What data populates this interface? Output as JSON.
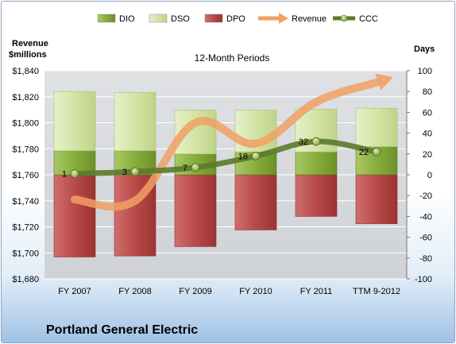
{
  "chart_data": {
    "type": "bar",
    "title": "12-Month Periods",
    "company": "Portland General Electric",
    "left_axis_label_line1": "Revenue",
    "left_axis_label_line2": "$millions",
    "right_axis_label": "Days",
    "categories": [
      "FY 2007",
      "FY 2008",
      "FY 2009",
      "FY 2010",
      "FY 2011",
      "TTM 9-2012"
    ],
    "left_axis": {
      "min": 1680,
      "max": 1840,
      "step": 20,
      "ticks": [
        "$1,680",
        "$1,700",
        "$1,720",
        "$1,740",
        "$1,760",
        "$1,780",
        "$1,800",
        "$1,820",
        "$1,840"
      ]
    },
    "right_axis": {
      "min": -100,
      "max": 100,
      "step": 20,
      "ticks": [
        "-100",
        "-80",
        "-60",
        "-40",
        "-20",
        "0",
        "20",
        "40",
        "60",
        "80",
        "100"
      ]
    },
    "grid": true,
    "legend_position": "top",
    "series": [
      {
        "name": "DIO",
        "axis": "right",
        "kind": "stacked-bar",
        "color": "#8bb040",
        "values": [
          23,
          23,
          20,
          22,
          22,
          27
        ]
      },
      {
        "name": "DSO",
        "axis": "right",
        "kind": "stacked-bar",
        "color": "#d7e7ae",
        "values": [
          57,
          56,
          42,
          40,
          41,
          37
        ]
      },
      {
        "name": "DPO",
        "axis": "right",
        "kind": "negative-bar",
        "color": "#b94e4e",
        "values": [
          -79,
          -78,
          -69,
          -53,
          -40,
          -47
        ]
      },
      {
        "name": "Revenue",
        "axis": "left",
        "kind": "arrow-line",
        "color": "#f1a064",
        "values": [
          1741,
          1740,
          1800,
          1784,
          1816,
          1831
        ]
      },
      {
        "name": "CCC",
        "axis": "right",
        "kind": "line",
        "color": "#5c7a2a",
        "values": [
          1,
          3,
          7,
          18,
          32,
          22
        ],
        "labels": [
          "1",
          "3",
          "7",
          "18",
          "32",
          "22"
        ]
      }
    ]
  }
}
